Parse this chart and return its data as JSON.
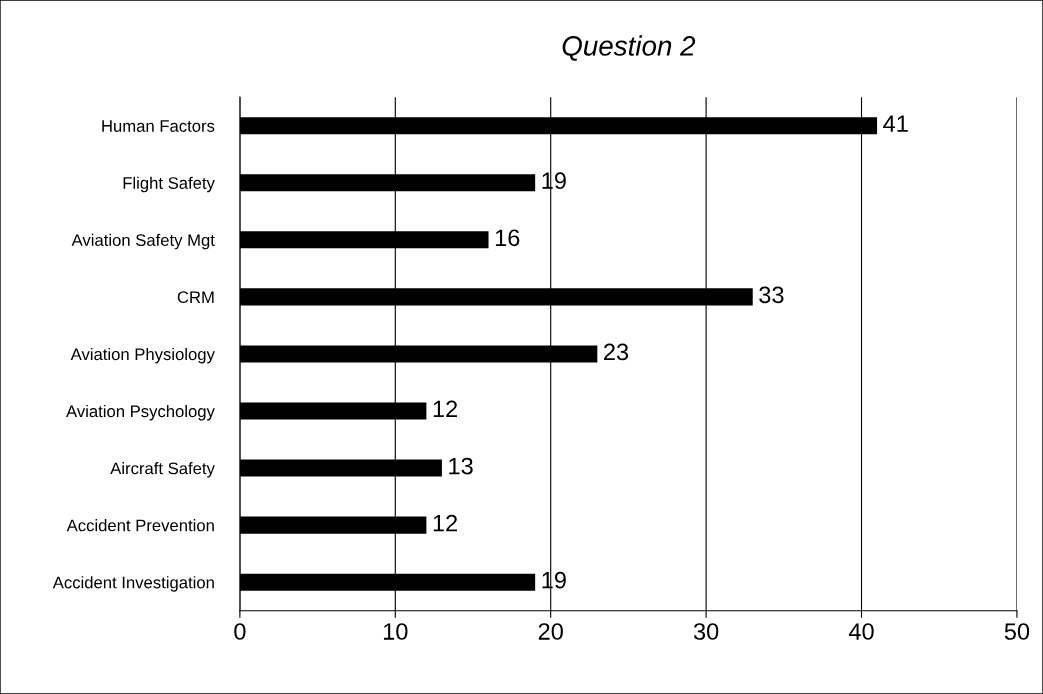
{
  "chart_data": {
    "type": "bar",
    "orientation": "horizontal",
    "title": "Question 2",
    "categories": [
      "Human Factors",
      "Flight Safety",
      "Aviation Safety Mgt",
      "CRM",
      "Aviation Physiology",
      "Aviation Psychology",
      "Aircraft Safety",
      "Accident Prevention",
      "Accident Investigation"
    ],
    "values": [
      41,
      19,
      16,
      33,
      23,
      12,
      13,
      12,
      19
    ],
    "color": "#000000",
    "xlim": [
      0,
      50
    ],
    "xticks": [
      0,
      10,
      20,
      30,
      40,
      50
    ],
    "grid": "x",
    "data_labels": true
  }
}
